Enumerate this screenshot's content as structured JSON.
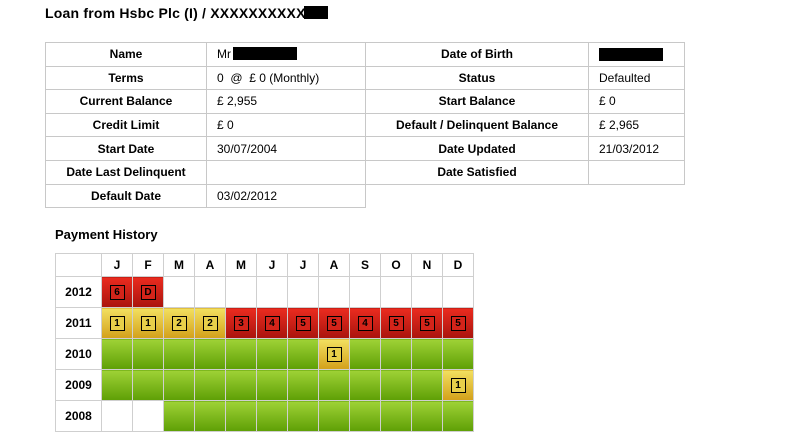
{
  "title": "Loan from Hsbc Plc (I) / XXXXXXXXXX",
  "details": {
    "rows": [
      [
        "Name",
        "Mr",
        "Date of Birth",
        ""
      ],
      [
        "Terms",
        "0  @  £ 0 (Monthly)",
        "Status",
        "Defaulted"
      ],
      [
        "Current Balance",
        "£ 2,955",
        "Start Balance",
        "£ 0"
      ],
      [
        "Credit Limit",
        "£ 0",
        "Default / Delinquent Balance",
        "£ 2,965"
      ],
      [
        "Start Date",
        "30/07/2004",
        "Date Updated",
        "21/03/2012"
      ],
      [
        "Date Last Delinquent",
        "",
        "Date Satisfied",
        ""
      ],
      [
        "Default Date",
        "03/02/2012"
      ]
    ]
  },
  "payment_history": {
    "title": "Payment History",
    "months": [
      "J",
      "F",
      "M",
      "A",
      "M",
      "J",
      "J",
      "A",
      "S",
      "O",
      "N",
      "D"
    ],
    "years": [
      {
        "year": "2012",
        "cells": [
          {
            "s": "red",
            "t": "6"
          },
          {
            "s": "red",
            "t": "D"
          },
          {
            "s": "empty"
          },
          {
            "s": "empty"
          },
          {
            "s": "empty"
          },
          {
            "s": "empty"
          },
          {
            "s": "empty"
          },
          {
            "s": "empty"
          },
          {
            "s": "empty"
          },
          {
            "s": "empty"
          },
          {
            "s": "empty"
          },
          {
            "s": "empty"
          }
        ]
      },
      {
        "year": "2011",
        "cells": [
          {
            "s": "yellow",
            "t": "1"
          },
          {
            "s": "yellow",
            "t": "1"
          },
          {
            "s": "yellow",
            "t": "2"
          },
          {
            "s": "yellow",
            "t": "2"
          },
          {
            "s": "red",
            "t": "3"
          },
          {
            "s": "red",
            "t": "4"
          },
          {
            "s": "red",
            "t": "5"
          },
          {
            "s": "red",
            "t": "5"
          },
          {
            "s": "red",
            "t": "4"
          },
          {
            "s": "red",
            "t": "5"
          },
          {
            "s": "red",
            "t": "5"
          },
          {
            "s": "red",
            "t": "5"
          }
        ]
      },
      {
        "year": "2010",
        "cells": [
          {
            "s": "green"
          },
          {
            "s": "green"
          },
          {
            "s": "green"
          },
          {
            "s": "green"
          },
          {
            "s": "green"
          },
          {
            "s": "green"
          },
          {
            "s": "green"
          },
          {
            "s": "yellow",
            "t": "1"
          },
          {
            "s": "green"
          },
          {
            "s": "green"
          },
          {
            "s": "green"
          },
          {
            "s": "green"
          }
        ]
      },
      {
        "year": "2009",
        "cells": [
          {
            "s": "green"
          },
          {
            "s": "green"
          },
          {
            "s": "green"
          },
          {
            "s": "green"
          },
          {
            "s": "green"
          },
          {
            "s": "green"
          },
          {
            "s": "green"
          },
          {
            "s": "green"
          },
          {
            "s": "green"
          },
          {
            "s": "green"
          },
          {
            "s": "green"
          },
          {
            "s": "yellow",
            "t": "1"
          }
        ]
      },
      {
        "year": "2008",
        "cells": [
          {
            "s": "empty"
          },
          {
            "s": "empty"
          },
          {
            "s": "green"
          },
          {
            "s": "green"
          },
          {
            "s": "green"
          },
          {
            "s": "green"
          },
          {
            "s": "green"
          },
          {
            "s": "green"
          },
          {
            "s": "green"
          },
          {
            "s": "green"
          },
          {
            "s": "green"
          },
          {
            "s": "green"
          }
        ]
      }
    ]
  },
  "colors": {
    "status_ok": "#7ab51d",
    "status_late": "#e3c23a",
    "status_bad": "#cc1e14"
  }
}
